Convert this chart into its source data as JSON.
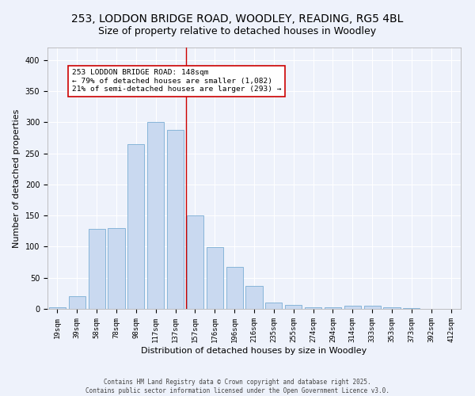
{
  "title1": "253, LODDON BRIDGE ROAD, WOODLEY, READING, RG5 4BL",
  "title2": "Size of property relative to detached houses in Woodley",
  "xlabel": "Distribution of detached houses by size in Woodley",
  "ylabel": "Number of detached properties",
  "categories": [
    "19sqm",
    "39sqm",
    "58sqm",
    "78sqm",
    "98sqm",
    "117sqm",
    "137sqm",
    "157sqm",
    "176sqm",
    "196sqm",
    "216sqm",
    "235sqm",
    "255sqm",
    "274sqm",
    "294sqm",
    "314sqm",
    "333sqm",
    "353sqm",
    "373sqm",
    "392sqm",
    "412sqm"
  ],
  "values": [
    2,
    20,
    128,
    130,
    265,
    300,
    287,
    150,
    99,
    68,
    37,
    10,
    6,
    3,
    2,
    5,
    5,
    3,
    1,
    0,
    0
  ],
  "bar_color": "#c9d9f0",
  "bar_edge_color": "#7aadd4",
  "marker_label": "253 LODDON BRIDGE ROAD: 148sqm",
  "marker_pct_smaller": "79% of detached houses are smaller (1,082)",
  "marker_pct_larger": "21% of semi-detached houses are larger (293)",
  "marker_line_color": "#cc0000",
  "annotation_box_color": "#cc0000",
  "background_color": "#eef2fb",
  "ylim": [
    0,
    420
  ],
  "yticks": [
    0,
    50,
    100,
    150,
    200,
    250,
    300,
    350,
    400
  ],
  "footer_line1": "Contains HM Land Registry data © Crown copyright and database right 2025.",
  "footer_line2": "Contains public sector information licensed under the Open Government Licence v3.0.",
  "title_fontsize": 10,
  "subtitle_fontsize": 9,
  "tick_fontsize": 6.5,
  "xlabel_fontsize": 8,
  "ylabel_fontsize": 8,
  "footer_fontsize": 5.5
}
